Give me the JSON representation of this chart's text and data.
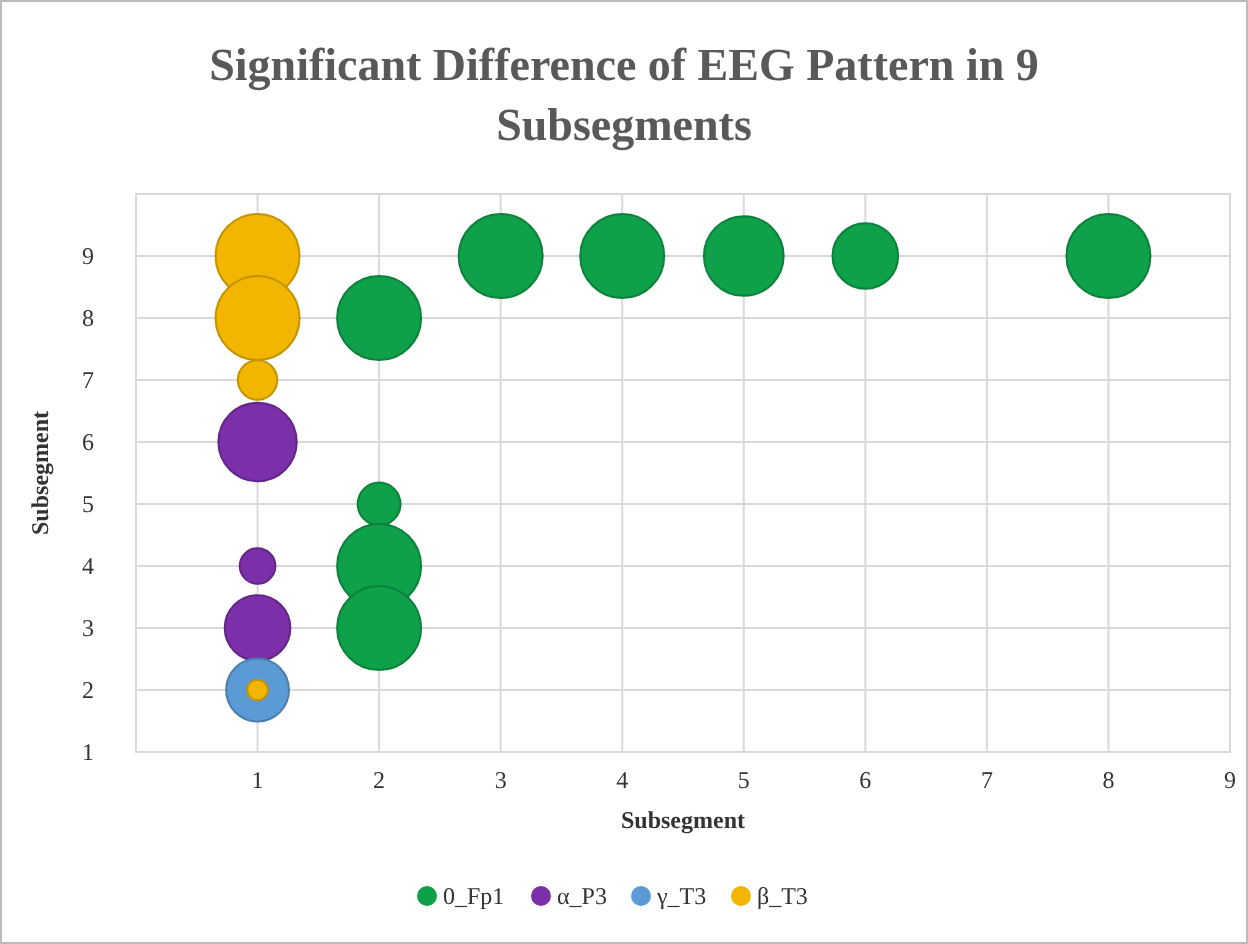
{
  "chart_data": {
    "type": "bubble",
    "title": "Significant Difference of EEG Pattern in 9 Subsegments",
    "xlabel": "Subsegment",
    "ylabel": "Subsegment",
    "xlim": [
      0,
      9
    ],
    "xticks": [
      {
        "value": 0,
        "label": null
      },
      1,
      2,
      3,
      4,
      5,
      6,
      7,
      8,
      9
    ],
    "ylim": [
      1,
      10
    ],
    "yticks": [
      1,
      2,
      3,
      4,
      5,
      6,
      7,
      8,
      9,
      {
        "value": 10,
        "label": null
      }
    ],
    "grid": true,
    "legend": "bottom",
    "relative": false,
    "series": [
      {
        "name": "0_Fp1",
        "color": "#0fa04a",
        "x": [
          3,
          4,
          5,
          6,
          8,
          2,
          2,
          2,
          2
        ],
        "values": [
          9,
          9,
          9,
          9,
          9,
          8,
          5,
          4,
          3
        ],
        "sizes": [
          1,
          1,
          0.9,
          0.61,
          1,
          1,
          0.26,
          1,
          1
        ]
      },
      {
        "name": "α_P3",
        "color": "#7b2fa8",
        "x": [
          1,
          1,
          1
        ],
        "values": [
          6,
          4,
          3
        ],
        "sizes": [
          0.87,
          0.18,
          0.61
        ]
      },
      {
        "name": "γ_T3",
        "color": "#5b9bd5",
        "x": [
          1
        ],
        "values": [
          2
        ],
        "sizes": [
          0.56
        ]
      },
      {
        "name": "β_T3",
        "color": "#f2b600",
        "x": [
          1,
          1,
          1,
          1
        ],
        "values": [
          9,
          8,
          7,
          2
        ],
        "sizes": [
          1,
          1,
          0.22,
          0.06
        ]
      }
    ]
  }
}
